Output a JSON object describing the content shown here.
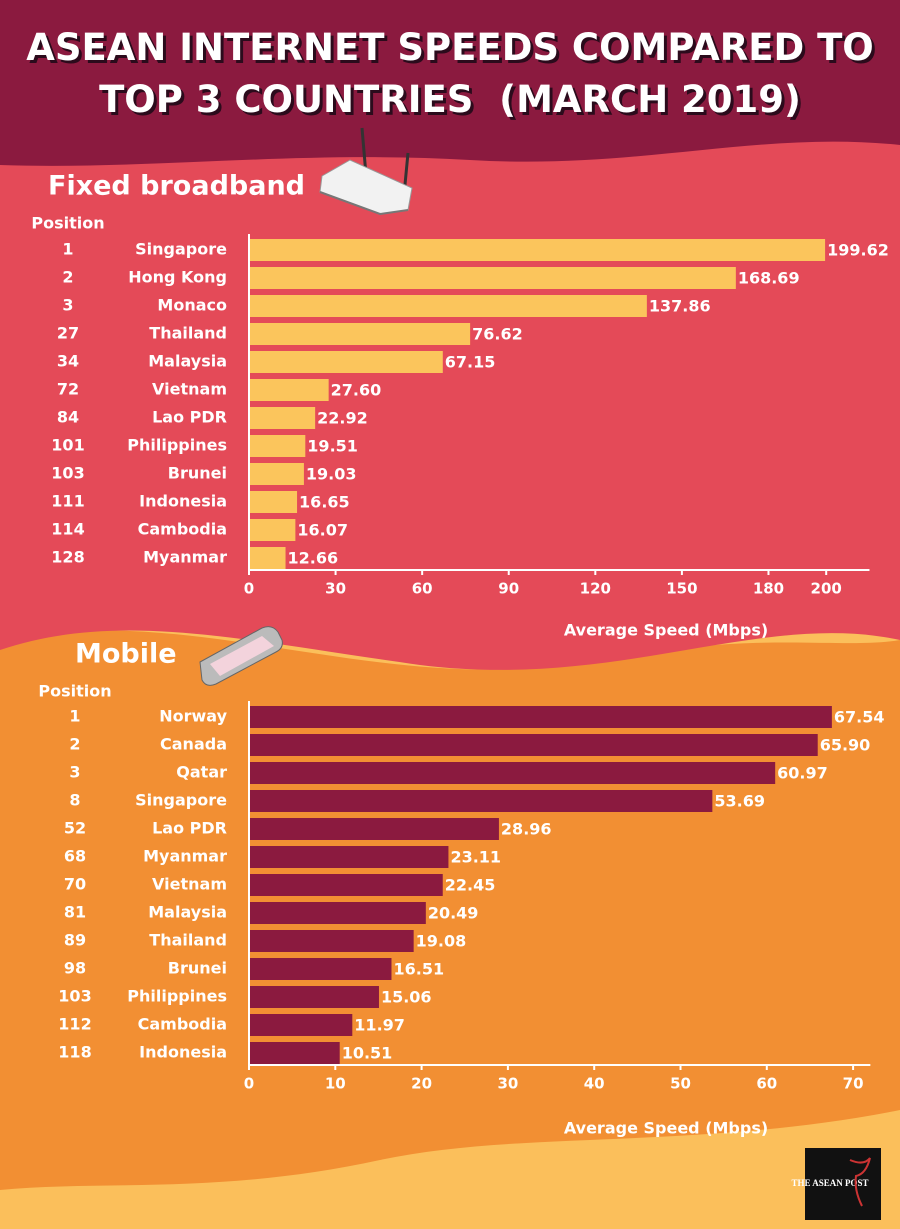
{
  "title": "ASEAN INTERNET SPEEDS COMPARED TO TOP 3 COUNTRIES  (MARCH 2019)",
  "logo": "THE ASEAN POST",
  "chart_data": [
    {
      "type": "bar",
      "orientation": "horizontal",
      "title": "Fixed broadband",
      "position_header": "Position",
      "positions": [
        1,
        2,
        3,
        27,
        34,
        72,
        84,
        101,
        103,
        111,
        114,
        128
      ],
      "categories": [
        "Singapore",
        "Hong Kong",
        "Monaco",
        "Thailand",
        "Malaysia",
        "Vietnam",
        "Lao PDR",
        "Philippines",
        "Brunei",
        "Indonesia",
        "Cambodia",
        "Myanmar"
      ],
      "values": [
        199.62,
        168.69,
        137.86,
        76.62,
        67.15,
        27.6,
        22.92,
        19.51,
        19.03,
        16.65,
        16.07,
        12.66
      ],
      "value_labels": [
        "199.62",
        "168.69",
        "137.86",
        "76.62",
        "67.15",
        "27.60",
        "22.92",
        "19.51",
        "19.03",
        "16.65",
        "16.07",
        "12.66"
      ],
      "color": "#fbc55c",
      "xlim": [
        0,
        215
      ],
      "xticks": [
        0,
        30,
        60,
        90,
        120,
        150,
        180,
        200
      ],
      "xlabel": "Average Speed (Mbps)"
    },
    {
      "type": "bar",
      "orientation": "horizontal",
      "title": "Mobile",
      "position_header": "Position",
      "positions": [
        1,
        2,
        3,
        8,
        52,
        68,
        70,
        81,
        89,
        98,
        103,
        112,
        118
      ],
      "categories": [
        "Norway",
        "Canada",
        "Qatar",
        "Singapore",
        "Lao PDR",
        "Myanmar",
        "Vietnam",
        "Malaysia",
        "Thailand",
        "Brunei",
        "Philippines",
        "Cambodia",
        "Indonesia"
      ],
      "values": [
        67.54,
        65.9,
        60.97,
        53.69,
        28.96,
        23.11,
        22.45,
        20.49,
        19.08,
        16.51,
        15.06,
        11.97,
        10.51
      ],
      "value_labels": [
        "67.54",
        "65.90",
        "60.97",
        "53.69",
        "28.96",
        "23.11",
        "22.45",
        "20.49",
        "19.08",
        "16.51",
        "15.06",
        "11.97",
        "10.51"
      ],
      "color": "#8b1a3f",
      "xlim": [
        0,
        72
      ],
      "xticks": [
        0,
        10,
        20,
        30,
        40,
        50,
        60,
        70
      ],
      "xlabel": "Average Speed (Mbps)"
    }
  ]
}
